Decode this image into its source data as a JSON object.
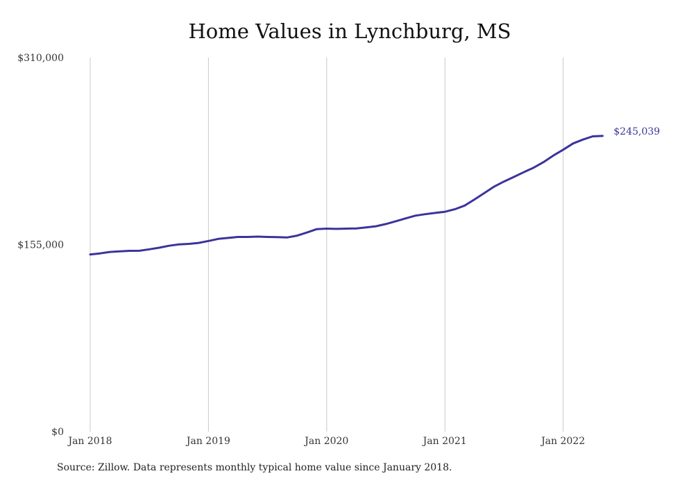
{
  "chart_data": {
    "type": "line",
    "title": "Home Values in Lynchburg, MS",
    "xlabel": "",
    "ylabel": "",
    "x_tick_labels": [
      "Jan 2018",
      "Jan 2019",
      "Jan 2020",
      "Jan 2021",
      "Jan 2022"
    ],
    "y_tick_labels": [
      "$0",
      "$155,000",
      "$310,000"
    ],
    "ylim": [
      0,
      310000
    ],
    "grid": "vertical",
    "end_label": "$245,039",
    "series": [
      {
        "name": "",
        "color": "#3b339b",
        "x": [
          "2018-01",
          "2018-02",
          "2018-03",
          "2018-04",
          "2018-05",
          "2018-06",
          "2018-07",
          "2018-08",
          "2018-09",
          "2018-10",
          "2018-11",
          "2018-12",
          "2019-01",
          "2019-02",
          "2019-03",
          "2019-04",
          "2019-05",
          "2019-06",
          "2019-07",
          "2019-08",
          "2019-09",
          "2019-10",
          "2019-11",
          "2019-12",
          "2020-01",
          "2020-02",
          "2020-03",
          "2020-04",
          "2020-05",
          "2020-06",
          "2020-07",
          "2020-08",
          "2020-09",
          "2020-10",
          "2020-11",
          "2020-12",
          "2021-01",
          "2021-02",
          "2021-03",
          "2021-04",
          "2021-05",
          "2021-06",
          "2021-07",
          "2021-08",
          "2021-09",
          "2021-10",
          "2021-11",
          "2021-12",
          "2022-01",
          "2022-02",
          "2022-03",
          "2022-04",
          "2022-05"
        ],
        "values": [
          146800,
          147700,
          148900,
          149400,
          149800,
          149900,
          151100,
          152400,
          154000,
          155200,
          155600,
          156400,
          158000,
          159700,
          160500,
          161300,
          161300,
          161600,
          161300,
          161200,
          160900,
          162400,
          165000,
          167800,
          168200,
          168000,
          168200,
          168400,
          169200,
          170200,
          172000,
          174300,
          176700,
          179000,
          180200,
          181200,
          182200,
          184300,
          187300,
          192400,
          197700,
          203100,
          207300,
          211100,
          215000,
          218700,
          223300,
          228800,
          233600,
          238800,
          242000,
          244700,
          245039
        ]
      }
    ]
  },
  "source_note": "Source: Zillow. Data represents monthly typical home value since January 2018."
}
